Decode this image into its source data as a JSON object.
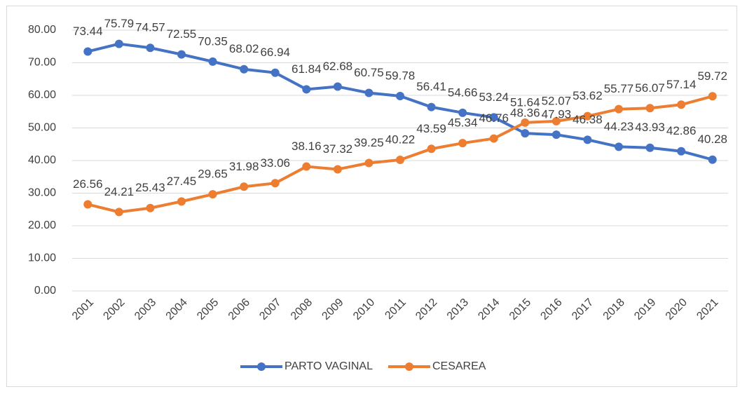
{
  "chart_data": {
    "type": "line",
    "categories": [
      "2001",
      "2002",
      "2003",
      "2004",
      "2005",
      "2006",
      "2007",
      "2008",
      "2009",
      "2010",
      "2011",
      "2012",
      "2013",
      "2014",
      "2015",
      "2016",
      "2017",
      "2018",
      "2019",
      "2020",
      "2021"
    ],
    "series": [
      {
        "name": "PARTO VAGINAL",
        "color": "#4472c4",
        "values": [
          73.44,
          75.79,
          74.57,
          72.55,
          70.35,
          68.02,
          66.94,
          61.84,
          62.68,
          60.75,
          59.78,
          56.41,
          54.66,
          53.24,
          48.36,
          47.93,
          46.38,
          44.23,
          43.93,
          42.86,
          40.28
        ]
      },
      {
        "name": "CESAREA",
        "color": "#ed7d31",
        "values": [
          26.56,
          24.21,
          25.43,
          27.45,
          29.65,
          31.98,
          33.06,
          38.16,
          37.32,
          39.25,
          40.22,
          43.59,
          45.34,
          46.76,
          51.64,
          52.07,
          53.62,
          55.77,
          56.07,
          57.14,
          59.72
        ]
      }
    ],
    "ylim": [
      0,
      80
    ],
    "yticks": [
      {
        "value": 0,
        "label": "0.00"
      },
      {
        "value": 10,
        "label": "10.00"
      },
      {
        "value": 20,
        "label": "20.00"
      },
      {
        "value": 30,
        "label": "30.00"
      },
      {
        "value": 40,
        "label": "40.00"
      },
      {
        "value": 50,
        "label": "50.00"
      },
      {
        "value": 60,
        "label": "60.00"
      },
      {
        "value": 70,
        "label": "70.00"
      },
      {
        "value": 80,
        "label": "80.00"
      }
    ],
    "grid": true,
    "legend": "bottom"
  }
}
